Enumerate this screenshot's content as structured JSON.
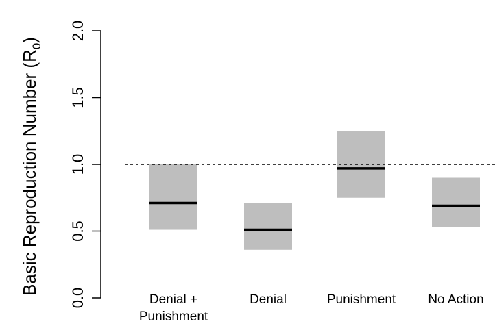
{
  "chart_data": {
    "type": "box",
    "ylabel": "Basic Reproduction Number (R0)",
    "ylabel_parts": {
      "main": "Basic Reproduction Number (R",
      "subscript": "0",
      "close": ")"
    },
    "ylim": [
      0,
      2
    ],
    "yticks": [
      "0.0",
      "0.5",
      "1.0",
      "1.5",
      "2.0"
    ],
    "reference_line": {
      "y": 1.0,
      "style": "dashed"
    },
    "categories": [
      {
        "label_lines": [
          "Denial +",
          "Punishment"
        ],
        "low": 0.51,
        "median": 0.71,
        "high": 1.0
      },
      {
        "label_lines": [
          "Denial"
        ],
        "low": 0.36,
        "median": 0.51,
        "high": 0.71
      },
      {
        "label_lines": [
          "Punishment"
        ],
        "low": 0.75,
        "median": 0.97,
        "high": 1.25
      },
      {
        "label_lines": [
          "No Action"
        ],
        "low": 0.53,
        "median": 0.69,
        "high": 0.9
      }
    ],
    "colors": {
      "box_fill": "#bebebe",
      "median": "#000000",
      "axis": "#000000"
    }
  }
}
